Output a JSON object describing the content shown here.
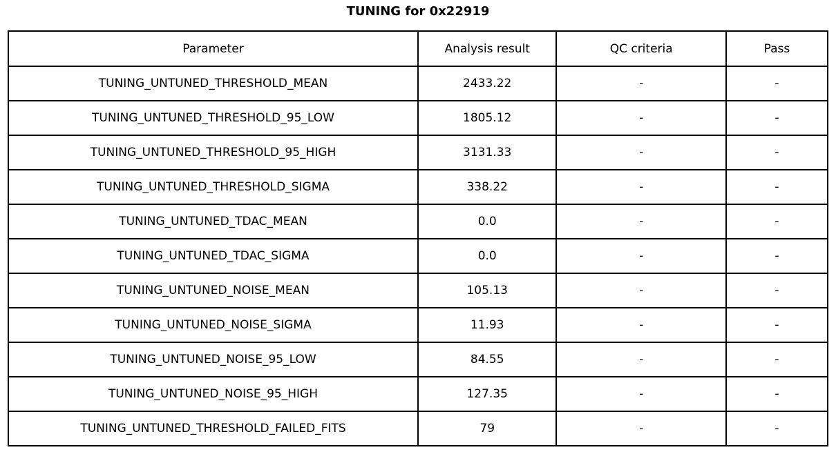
{
  "chart_data": {
    "type": "table",
    "title": "TUNING for 0x22919",
    "columns": [
      "Parameter",
      "Analysis result",
      "QC criteria",
      "Pass"
    ],
    "rows": [
      [
        "TUNING_UNTUNED_THRESHOLD_MEAN",
        "2433.22",
        "-",
        "-"
      ],
      [
        "TUNING_UNTUNED_THRESHOLD_95_LOW",
        "1805.12",
        "-",
        "-"
      ],
      [
        "TUNING_UNTUNED_THRESHOLD_95_HIGH",
        "3131.33",
        "-",
        "-"
      ],
      [
        "TUNING_UNTUNED_THRESHOLD_SIGMA",
        "338.22",
        "-",
        "-"
      ],
      [
        "TUNING_UNTUNED_TDAC_MEAN",
        "0.0",
        "-",
        "-"
      ],
      [
        "TUNING_UNTUNED_TDAC_SIGMA",
        "0.0",
        "-",
        "-"
      ],
      [
        "TUNING_UNTUNED_NOISE_MEAN",
        "105.13",
        "-",
        "-"
      ],
      [
        "TUNING_UNTUNED_NOISE_SIGMA",
        "11.93",
        "-",
        "-"
      ],
      [
        "TUNING_UNTUNED_NOISE_95_LOW",
        "84.55",
        "-",
        "-"
      ],
      [
        "TUNING_UNTUNED_NOISE_95_HIGH",
        "127.35",
        "-",
        "-"
      ],
      [
        "TUNING_UNTUNED_THRESHOLD_FAILED_FITS",
        "79",
        "-",
        "-"
      ]
    ],
    "layout": {
      "grid": "on",
      "text_align": "center",
      "border_color": "#000000",
      "background_color": "#ffffff",
      "text_color": "#000000"
    }
  }
}
